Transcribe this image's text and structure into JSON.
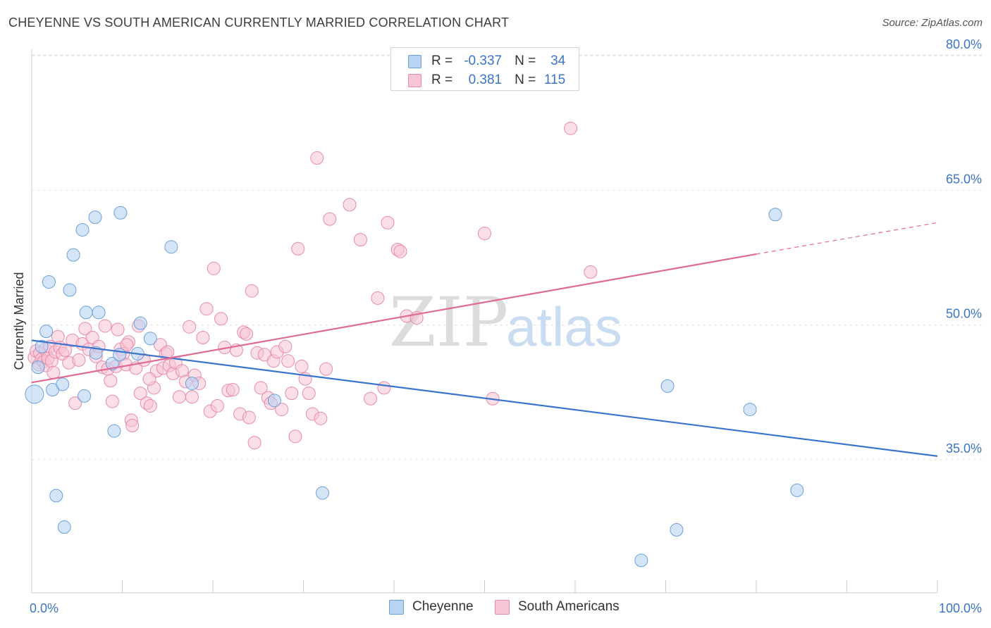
{
  "title": "CHEYENNE VS SOUTH AMERICAN CURRENTLY MARRIED CORRELATION CHART",
  "source": "Source: ZipAtlas.com",
  "watermark": {
    "zip": "ZIP",
    "atlas": "atlas"
  },
  "legend_top": {
    "rows": [
      {
        "r_label": "R =",
        "r_value": "-0.337",
        "n_label": "N =",
        "n_value": "34"
      },
      {
        "r_label": "R =",
        "r_value": "0.381",
        "n_label": "N =",
        "n_value": "115"
      }
    ]
  },
  "colors": {
    "cheyenne_fill": "#b9d3f3",
    "cheyenne_stroke": "#6b9fdc",
    "cheyenne_line": "#3a74cc",
    "south_fill": "#f8c5d4",
    "south_stroke": "#e88aa8",
    "south_line": "#e06a95",
    "axis_text": "#3b74c9",
    "grid": "#e2e2e2"
  },
  "chart_data": {
    "type": "scatter",
    "title": "CHEYENNE VS SOUTH AMERICAN CURRENTLY MARRIED CORRELATION CHART",
    "xlabel": "",
    "ylabel": "Currently Married",
    "xlim": [
      0,
      100
    ],
    "ylim": [
      21,
      83
    ],
    "x_tick_labels": [
      "0.0%",
      "100.0%"
    ],
    "y_ticks": [
      35,
      50,
      65,
      80
    ],
    "y_tick_labels": [
      "35.0%",
      "50.0%",
      "65.0%",
      "80.0%"
    ],
    "grid": "horizontal dashed",
    "legend_placement": "bottom",
    "series": [
      {
        "name": "Cheyenne",
        "r": -0.337,
        "n": 34,
        "trend": {
          "x": [
            0,
            100
          ],
          "y": [
            48.3,
            35.4
          ]
        },
        "points": [
          {
            "x": 0.3,
            "y": 42.3,
            "big": true
          },
          {
            "x": 0.7,
            "y": 45.3
          },
          {
            "x": 1.1,
            "y": 47.6
          },
          {
            "x": 1.6,
            "y": 49.3
          },
          {
            "x": 1.9,
            "y": 54.8
          },
          {
            "x": 2.3,
            "y": 42.8
          },
          {
            "x": 2.7,
            "y": 31.0
          },
          {
            "x": 3.4,
            "y": 43.4
          },
          {
            "x": 3.6,
            "y": 27.5
          },
          {
            "x": 4.2,
            "y": 53.9
          },
          {
            "x": 4.6,
            "y": 57.8
          },
          {
            "x": 5.6,
            "y": 60.6
          },
          {
            "x": 5.8,
            "y": 42.1
          },
          {
            "x": 6.0,
            "y": 51.4
          },
          {
            "x": 7.0,
            "y": 62.0
          },
          {
            "x": 7.4,
            "y": 51.4
          },
          {
            "x": 7.1,
            "y": 46.9
          },
          {
            "x": 8.9,
            "y": 45.7
          },
          {
            "x": 9.1,
            "y": 38.2
          },
          {
            "x": 9.7,
            "y": 46.7
          },
          {
            "x": 9.8,
            "y": 62.5
          },
          {
            "x": 12.0,
            "y": 50.2
          },
          {
            "x": 11.7,
            "y": 46.8
          },
          {
            "x": 13.1,
            "y": 48.5
          },
          {
            "x": 15.4,
            "y": 58.7
          },
          {
            "x": 17.7,
            "y": 43.5
          },
          {
            "x": 26.8,
            "y": 41.6
          },
          {
            "x": 32.1,
            "y": 31.3
          },
          {
            "x": 67.3,
            "y": 23.8
          },
          {
            "x": 70.2,
            "y": 43.2
          },
          {
            "x": 71.2,
            "y": 27.2
          },
          {
            "x": 79.3,
            "y": 40.6
          },
          {
            "x": 82.1,
            "y": 62.3
          },
          {
            "x": 84.5,
            "y": 31.6
          }
        ]
      },
      {
        "name": "South Americans",
        "r": 0.381,
        "n": 115,
        "trend": {
          "x": [
            0,
            80
          ],
          "y": [
            43.6,
            57.9
          ]
        },
        "trend_dashed": {
          "x": [
            80,
            100
          ],
          "y": [
            57.9,
            61.4
          ]
        },
        "points": [
          {
            "x": 0.3,
            "y": 46.4
          },
          {
            "x": 0.5,
            "y": 47.1
          },
          {
            "x": 0.8,
            "y": 45.6
          },
          {
            "x": 0.9,
            "y": 46.9
          },
          {
            "x": 1.1,
            "y": 46.2
          },
          {
            "x": 1.3,
            "y": 45.9
          },
          {
            "x": 1.5,
            "y": 47.3
          },
          {
            "x": 1.6,
            "y": 45.5
          },
          {
            "x": 1.8,
            "y": 46.3
          },
          {
            "x": 2.0,
            "y": 47.6
          },
          {
            "x": 2.2,
            "y": 46.0
          },
          {
            "x": 2.4,
            "y": 44.7
          },
          {
            "x": 2.6,
            "y": 47.0
          },
          {
            "x": 2.9,
            "y": 48.7
          },
          {
            "x": 3.1,
            "y": 47.5
          },
          {
            "x": 3.4,
            "y": 46.8
          },
          {
            "x": 3.7,
            "y": 47.2
          },
          {
            "x": 4.1,
            "y": 45.8
          },
          {
            "x": 4.5,
            "y": 48.3
          },
          {
            "x": 4.8,
            "y": 41.3
          },
          {
            "x": 5.2,
            "y": 46.1
          },
          {
            "x": 5.6,
            "y": 47.9
          },
          {
            "x": 5.9,
            "y": 49.6
          },
          {
            "x": 6.3,
            "y": 47.3
          },
          {
            "x": 6.7,
            "y": 48.6
          },
          {
            "x": 7.1,
            "y": 46.5
          },
          {
            "x": 7.4,
            "y": 47.6
          },
          {
            "x": 7.8,
            "y": 45.3
          },
          {
            "x": 8.1,
            "y": 49.9
          },
          {
            "x": 8.4,
            "y": 45.1
          },
          {
            "x": 8.7,
            "y": 43.8
          },
          {
            "x": 8.9,
            "y": 41.5
          },
          {
            "x": 9.3,
            "y": 45.4
          },
          {
            "x": 9.5,
            "y": 49.5
          },
          {
            "x": 9.8,
            "y": 47.3
          },
          {
            "x": 10.1,
            "y": 46.8
          },
          {
            "x": 10.4,
            "y": 45.6
          },
          {
            "x": 10.7,
            "y": 48.1
          },
          {
            "x": 11.0,
            "y": 39.4
          },
          {
            "x": 11.1,
            "y": 38.8
          },
          {
            "x": 11.5,
            "y": 45.2
          },
          {
            "x": 11.8,
            "y": 49.9
          },
          {
            "x": 12.0,
            "y": 42.4
          },
          {
            "x": 12.4,
            "y": 46.1
          },
          {
            "x": 12.7,
            "y": 41.3
          },
          {
            "x": 13.1,
            "y": 41.0
          },
          {
            "x": 13.5,
            "y": 43.0
          },
          {
            "x": 13.8,
            "y": 44.9
          },
          {
            "x": 14.2,
            "y": 47.8
          },
          {
            "x": 14.5,
            "y": 45.2
          },
          {
            "x": 14.8,
            "y": 46.8
          },
          {
            "x": 15.2,
            "y": 45.5
          },
          {
            "x": 15.6,
            "y": 44.6
          },
          {
            "x": 15.9,
            "y": 45.8
          },
          {
            "x": 16.3,
            "y": 42.0
          },
          {
            "x": 16.6,
            "y": 44.9
          },
          {
            "x": 17.0,
            "y": 43.7
          },
          {
            "x": 17.4,
            "y": 49.8
          },
          {
            "x": 17.7,
            "y": 42.0
          },
          {
            "x": 18.0,
            "y": 44.4
          },
          {
            "x": 18.5,
            "y": 43.5
          },
          {
            "x": 18.9,
            "y": 48.6
          },
          {
            "x": 19.3,
            "y": 51.8
          },
          {
            "x": 19.7,
            "y": 40.4
          },
          {
            "x": 20.1,
            "y": 56.3
          },
          {
            "x": 20.5,
            "y": 41.0
          },
          {
            "x": 20.9,
            "y": 50.7
          },
          {
            "x": 21.3,
            "y": 47.5
          },
          {
            "x": 21.7,
            "y": 42.7
          },
          {
            "x": 22.2,
            "y": 42.8
          },
          {
            "x": 22.6,
            "y": 47.2
          },
          {
            "x": 23.0,
            "y": 40.1
          },
          {
            "x": 23.4,
            "y": 49.2
          },
          {
            "x": 23.7,
            "y": 49.0
          },
          {
            "x": 24.0,
            "y": 39.7
          },
          {
            "x": 24.3,
            "y": 53.8
          },
          {
            "x": 24.6,
            "y": 36.9
          },
          {
            "x": 24.9,
            "y": 46.9
          },
          {
            "x": 25.3,
            "y": 43.0
          },
          {
            "x": 25.7,
            "y": 46.7
          },
          {
            "x": 26.1,
            "y": 41.9
          },
          {
            "x": 26.4,
            "y": 41.3
          },
          {
            "x": 26.7,
            "y": 46.0
          },
          {
            "x": 27.1,
            "y": 47.0
          },
          {
            "x": 27.6,
            "y": 40.6
          },
          {
            "x": 28.0,
            "y": 47.6
          },
          {
            "x": 28.3,
            "y": 46.0
          },
          {
            "x": 28.7,
            "y": 42.4
          },
          {
            "x": 29.1,
            "y": 37.6
          },
          {
            "x": 29.4,
            "y": 58.5
          },
          {
            "x": 29.8,
            "y": 45.4
          },
          {
            "x": 30.2,
            "y": 44.0
          },
          {
            "x": 30.6,
            "y": 42.4
          },
          {
            "x": 31.0,
            "y": 40.1
          },
          {
            "x": 31.5,
            "y": 68.6
          },
          {
            "x": 31.9,
            "y": 39.6
          },
          {
            "x": 32.5,
            "y": 45.1
          },
          {
            "x": 32.9,
            "y": 61.8
          },
          {
            "x": 35.1,
            "y": 63.4
          },
          {
            "x": 36.3,
            "y": 59.5
          },
          {
            "x": 37.4,
            "y": 41.8
          },
          {
            "x": 38.2,
            "y": 53.0
          },
          {
            "x": 38.9,
            "y": 43.0
          },
          {
            "x": 39.3,
            "y": 61.4
          },
          {
            "x": 40.4,
            "y": 58.4
          },
          {
            "x": 40.7,
            "y": 58.2
          },
          {
            "x": 41.4,
            "y": 51.0
          },
          {
            "x": 42.5,
            "y": 50.8
          },
          {
            "x": 50.0,
            "y": 60.2
          },
          {
            "x": 50.9,
            "y": 41.8
          },
          {
            "x": 59.5,
            "y": 71.9
          },
          {
            "x": 61.7,
            "y": 55.9
          },
          {
            "x": 15.0,
            "y": 47.0
          },
          {
            "x": 13.0,
            "y": 44.0
          },
          {
            "x": 10.5,
            "y": 47.8
          }
        ]
      }
    ]
  }
}
